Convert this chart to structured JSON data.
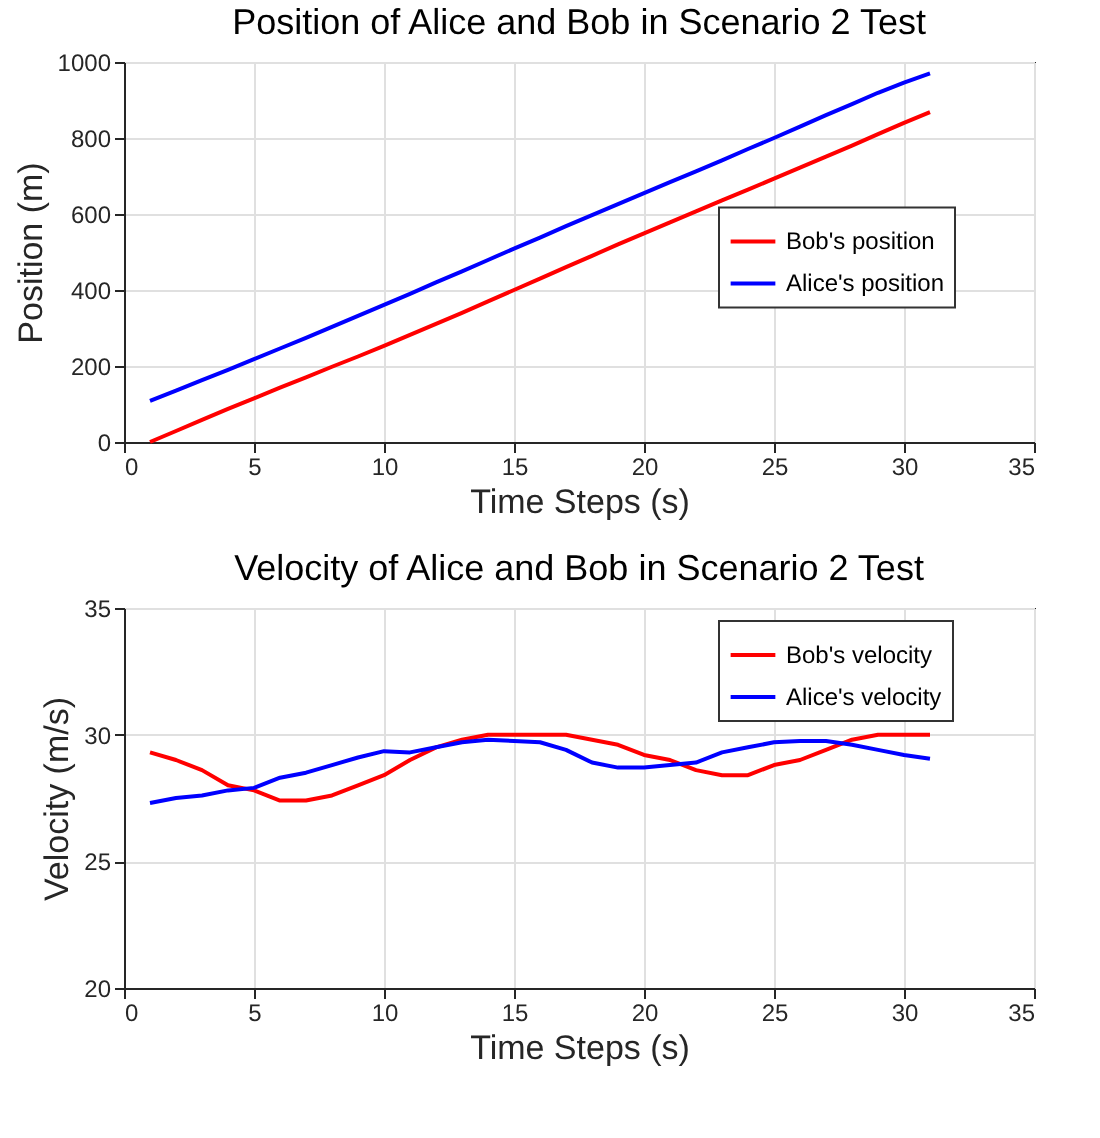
{
  "chart_data": [
    {
      "type": "line",
      "title": "Position of Alice and Bob in Scenario 2 Test",
      "xlabel": "Time Steps (s)",
      "ylabel": "Position (m)",
      "x": [
        1,
        2,
        3,
        4,
        5,
        6,
        7,
        8,
        9,
        10,
        11,
        12,
        13,
        14,
        15,
        16,
        17,
        18,
        19,
        20,
        21,
        22,
        23,
        24,
        25,
        26,
        27,
        28,
        29,
        30,
        31
      ],
      "series": [
        {
          "name": "Bob's position",
          "color": "#ff0000",
          "values": [
            0,
            29,
            58,
            87,
            115,
            143,
            170,
            198,
            225,
            253,
            282,
            311,
            340,
            370,
            400,
            430,
            460,
            490,
            520,
            549,
            578,
            607,
            636,
            664,
            693,
            722,
            751,
            780,
            810,
            840,
            868
          ]
        },
        {
          "name": "Alice's position",
          "color": "#0000ff",
          "values": [
            108,
            135,
            163,
            190,
            218,
            246,
            274,
            303,
            332,
            361,
            390,
            420,
            449,
            479,
            509,
            538,
            568,
            597,
            626,
            655,
            684,
            712,
            741,
            771,
            800,
            830,
            860,
            889,
            919,
            946,
            970
          ]
        }
      ],
      "xlim": [
        0,
        35
      ],
      "xticks": [
        0,
        5,
        10,
        15,
        20,
        25,
        30,
        35
      ],
      "ylim": [
        0,
        1000
      ],
      "yticks": [
        0,
        200,
        400,
        600,
        800,
        1000
      ],
      "grid": true,
      "legend": "right",
      "line_style": "solid",
      "marker": "none"
    },
    {
      "type": "line",
      "title": "Velocity of Alice and Bob in Scenario 2 Test",
      "xlabel": "Time Steps (s)",
      "ylabel": "Velocity (m/s)",
      "x": [
        1,
        2,
        3,
        4,
        5,
        6,
        7,
        8,
        9,
        10,
        11,
        12,
        13,
        14,
        15,
        16,
        17,
        18,
        19,
        20,
        21,
        22,
        23,
        24,
        25,
        26,
        27,
        28,
        29,
        30,
        31
      ],
      "series": [
        {
          "name": "Bob's velocity",
          "color": "#ff0000",
          "values": [
            29.3,
            29.0,
            28.6,
            28.0,
            27.8,
            27.4,
            27.4,
            27.6,
            28.0,
            28.4,
            29.0,
            29.5,
            29.8,
            30.0,
            30.0,
            30.0,
            30.0,
            29.8,
            29.6,
            29.2,
            29.0,
            28.6,
            28.4,
            28.4,
            28.8,
            29.0,
            29.4,
            29.8,
            30.0,
            30.0,
            30.0
          ]
        },
        {
          "name": "Alice's velocity",
          "color": "#0000ff",
          "values": [
            27.3,
            27.5,
            27.6,
            27.8,
            27.9,
            28.3,
            28.5,
            28.8,
            29.1,
            29.35,
            29.3,
            29.5,
            29.7,
            29.8,
            29.75,
            29.7,
            29.4,
            28.9,
            28.7,
            28.7,
            28.8,
            28.9,
            29.3,
            29.5,
            29.7,
            29.75,
            29.75,
            29.6,
            29.4,
            29.2,
            29.05
          ]
        }
      ],
      "xlim": [
        0,
        35
      ],
      "xticks": [
        0,
        5,
        10,
        15,
        20,
        25,
        30,
        35
      ],
      "ylim": [
        20,
        35
      ],
      "yticks": [
        20,
        25,
        30,
        35
      ],
      "grid": true,
      "legend": "top right",
      "line_style": "solid",
      "marker": "none"
    }
  ]
}
